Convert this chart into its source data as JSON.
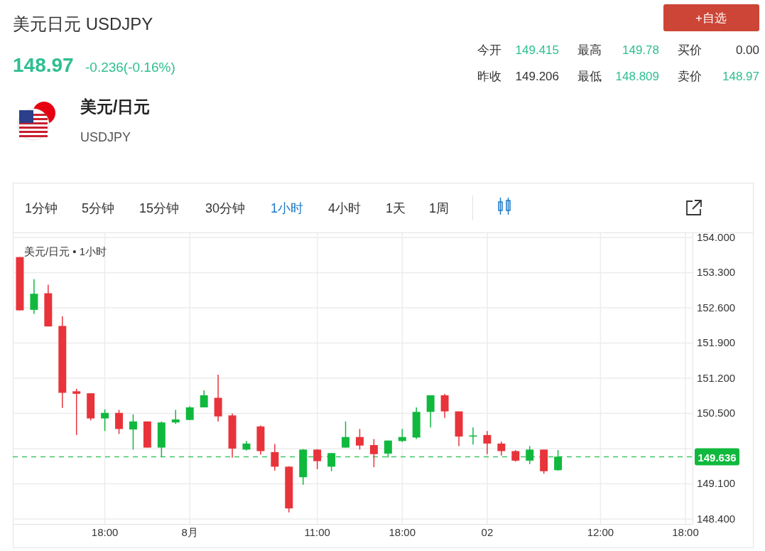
{
  "chart_data": {
    "type": "candlestick",
    "title": "美元日元 USDJPY",
    "subtitle": "美元/日元 • 1小时",
    "annotations": [
      "148.97",
      "-0.236(-0.16%)",
      "美元/日元",
      "USDJPY",
      "今开",
      "149.415",
      "最高",
      "149.78",
      "买价",
      "0.00",
      "昨收",
      "149.206",
      "最低",
      "148.809",
      "卖价",
      "148.97",
      "+自选",
      "1分钟",
      "5分钟",
      "15分钟",
      "30分钟",
      "1小时",
      "4小时",
      "1天",
      "1周"
    ],
    "categories": [
      null,
      null,
      null,
      null,
      null,
      null,
      "18:00",
      null,
      null,
      null,
      null,
      null,
      "8月",
      null,
      null,
      null,
      null,
      null,
      null,
      null,
      null,
      "11:00",
      null,
      null,
      null,
      null,
      null,
      "18:00",
      null,
      null,
      null,
      null,
      null,
      "02",
      null,
      null,
      null,
      null,
      null,
      null,
      null,
      "12:00",
      null,
      null,
      null,
      null,
      null,
      "18:00"
    ],
    "ohlc": [
      [
        153.61,
        153.61,
        152.55,
        152.55
      ],
      [
        152.56,
        153.17,
        152.48,
        152.88
      ],
      [
        152.89,
        153.06,
        152.23,
        152.23
      ],
      [
        152.24,
        152.43,
        150.61,
        150.91
      ],
      [
        150.94,
        150.99,
        150.07,
        150.89
      ],
      [
        150.9,
        150.9,
        150.36,
        150.4
      ],
      [
        150.4,
        150.58,
        150.15,
        150.51
      ],
      [
        150.51,
        150.57,
        150.09,
        150.19
      ],
      [
        150.18,
        150.48,
        149.78,
        150.34
      ],
      [
        150.34,
        150.34,
        149.82,
        149.82
      ],
      [
        149.82,
        150.34,
        149.63,
        150.32
      ],
      [
        150.32,
        150.57,
        150.29,
        150.38
      ],
      [
        150.37,
        150.64,
        150.37,
        150.62
      ],
      [
        150.62,
        150.96,
        150.62,
        150.86
      ],
      [
        150.81,
        151.27,
        150.34,
        150.44
      ],
      [
        150.46,
        150.5,
        149.62,
        149.8
      ],
      [
        149.78,
        149.95,
        149.76,
        149.9
      ],
      [
        150.24,
        150.26,
        149.68,
        149.75
      ],
      [
        149.73,
        149.89,
        149.36,
        149.44
      ],
      [
        149.44,
        149.45,
        148.53,
        148.61
      ],
      [
        149.23,
        149.79,
        149.08,
        149.78
      ],
      [
        149.78,
        149.79,
        149.39,
        149.55
      ],
      [
        149.44,
        149.71,
        149.35,
        149.71
      ],
      [
        149.82,
        150.34,
        149.82,
        150.03
      ],
      [
        150.03,
        150.19,
        149.78,
        149.86
      ],
      [
        149.87,
        149.99,
        149.43,
        149.69
      ],
      [
        149.7,
        149.96,
        149.62,
        149.96
      ],
      [
        149.95,
        150.19,
        149.93,
        150.03
      ],
      [
        150.02,
        150.62,
        149.99,
        150.53
      ],
      [
        150.53,
        150.86,
        150.22,
        150.86
      ],
      [
        150.86,
        150.89,
        150.41,
        150.54
      ],
      [
        150.54,
        150.54,
        149.85,
        150.04
      ],
      [
        150.04,
        150.22,
        149.88,
        150.06
      ],
      [
        150.07,
        150.15,
        149.69,
        149.9
      ],
      [
        149.9,
        149.94,
        149.66,
        149.75
      ],
      [
        149.75,
        149.77,
        149.54,
        149.56
      ],
      [
        149.56,
        149.85,
        149.49,
        149.78
      ],
      [
        149.78,
        149.78,
        149.3,
        149.35
      ],
      [
        149.37,
        149.77,
        149.36,
        149.64
      ],
      null,
      null,
      null,
      null,
      null,
      null,
      null,
      null,
      null
    ],
    "colors": [
      "#e8333a",
      "#10b93e",
      "#e8333a",
      "#e8333a",
      "#e8333a",
      "#e8333a",
      "#10b93e",
      "#e8333a",
      "#10b93e",
      "#e8333a",
      "#10b93e",
      "#10b93e",
      "#10b93e",
      "#10b93e",
      "#e8333a",
      "#e8333a",
      "#10b93e",
      "#e8333a",
      "#e8333a",
      "#e8333a",
      "#10b93e",
      "#e8333a",
      "#10b93e",
      "#10b93e",
      "#e8333a",
      "#e8333a",
      "#10b93e",
      "#10b93e",
      "#10b93e",
      "#10b93e",
      "#e8333a",
      "#e8333a",
      "#10b93e",
      "#e8333a",
      "#e8333a",
      "#e8333a",
      "#10b93e",
      "#e8333a",
      "#10b93e",
      null,
      null,
      null,
      null,
      null,
      null,
      null,
      null,
      null
    ],
    "ylim": [
      148.3,
      154.085
    ],
    "yticks": [
      {
        "value": 148.4,
        "label": "148.400"
      },
      {
        "value": 149.1,
        "label": "149.100"
      },
      {
        "value": 149.8,
        "label": null
      },
      {
        "value": 150.5,
        "label": "150.500"
      },
      {
        "value": 151.2,
        "label": "151.200"
      },
      {
        "value": 151.9,
        "label": "151.900"
      },
      {
        "value": 152.6,
        "label": "152.600"
      },
      {
        "value": 153.3,
        "label": "153.300"
      },
      {
        "value": 154.0,
        "label": "154.000"
      }
    ],
    "grid": true,
    "ref_lines": [
      {
        "axis": "y",
        "value": 149.636,
        "label": "149.636",
        "color": "#10b93e",
        "line_style": "dashed"
      }
    ]
  }
}
